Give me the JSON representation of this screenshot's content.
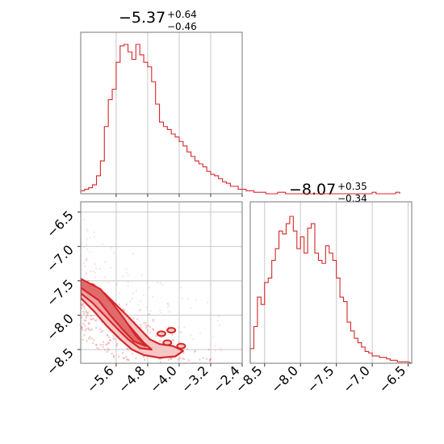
{
  "chart_data": [
    {
      "type": "histogram",
      "panel": "top-left",
      "title": {
        "median": "−5.37",
        "plus": "+0.64",
        "minus": "−0.46"
      },
      "xlim": [
        -6.5,
        -2.4
      ],
      "grid": true,
      "color": "#d62728",
      "bin_width": 0.1,
      "bin_start": -6.5,
      "counts": [
        2,
        3,
        4,
        6,
        12,
        22,
        45,
        63,
        70,
        88,
        99,
        100,
        95,
        90,
        100,
        93,
        88,
        85,
        75,
        60,
        48,
        45,
        43,
        40,
        38,
        35,
        32,
        28,
        25,
        22,
        20,
        18,
        15,
        13,
        12,
        10,
        8,
        7,
        5,
        5,
        3,
        3,
        2,
        2,
        1,
        1,
        1,
        0,
        0,
        0,
        1,
        1,
        0,
        0,
        0,
        0,
        0,
        0,
        0,
        0,
        0,
        0,
        0,
        0,
        0,
        0,
        0,
        0,
        0,
        0,
        0,
        0,
        0,
        0,
        1,
        0,
        0,
        0,
        0,
        0,
        1
      ]
    },
    {
      "type": "histogram",
      "panel": "bottom-right",
      "title": {
        "median": "−8.07",
        "plus": "+0.35",
        "minus": "−0.34"
      },
      "xlim": [
        -8.7,
        -6.45
      ],
      "xticks": [
        "−8.5",
        "−8.0",
        "−7.5",
        "−7.0",
        "−6.5"
      ],
      "xtick_values": [
        -8.5,
        -8.0,
        -7.5,
        -7.0,
        -6.5
      ],
      "grid": true,
      "color": "#d62728",
      "bin_width": 0.05,
      "bin_start": -8.7,
      "counts": [
        10,
        25,
        45,
        40,
        55,
        58,
        70,
        78,
        90,
        88,
        95,
        100,
        90,
        78,
        86,
        75,
        92,
        95,
        75,
        70,
        68,
        80,
        75,
        70,
        58,
        45,
        42,
        28,
        22,
        17,
        14,
        11,
        8,
        7,
        5,
        5,
        4,
        4,
        3,
        2,
        2,
        1,
        1,
        1
      ]
    },
    {
      "type": "scatter_contour",
      "panel": "bottom-left",
      "xlim": [
        -6.5,
        -2.4
      ],
      "ylim": [
        -8.7,
        -6.35
      ],
      "xticks": [
        "−5.6",
        "−4.8",
        "−4.0",
        "−3.2",
        "−2.4"
      ],
      "xtick_values": [
        -5.6,
        -4.8,
        -4.0,
        -3.2,
        -2.4
      ],
      "yticks": [
        "−6.5",
        "−7.0",
        "−7.5",
        "−8.0",
        "−8.5"
      ],
      "ytick_values": [
        -6.5,
        -7.0,
        -7.5,
        -8.0,
        -8.5
      ],
      "grid": true,
      "color": "#d62728",
      "contour_levels": [
        {
          "points": [
            [
              -6.5,
              -7.55
            ],
            [
              -6.2,
              -7.55
            ],
            [
              -5.9,
              -7.68
            ],
            [
              -5.6,
              -7.85
            ],
            [
              -5.3,
              -8.02
            ],
            [
              -5.0,
              -8.2
            ],
            [
              -4.75,
              -8.35
            ],
            [
              -4.5,
              -8.42
            ],
            [
              -4.15,
              -8.45
            ],
            [
              -3.9,
              -8.52
            ],
            [
              -4.1,
              -8.6
            ],
            [
              -4.5,
              -8.62
            ],
            [
              -4.9,
              -8.58
            ],
            [
              -5.2,
              -8.5
            ],
            [
              -5.5,
              -8.35
            ],
            [
              -5.85,
              -8.15
            ],
            [
              -6.15,
              -7.95
            ],
            [
              -6.5,
              -7.75
            ]
          ]
        },
        {
          "points": [
            [
              -6.5,
              -7.5
            ],
            [
              -6.1,
              -7.6
            ],
            [
              -5.8,
              -7.8
            ],
            [
              -5.5,
              -8.0
            ],
            [
              -5.2,
              -8.2
            ],
            [
              -4.9,
              -8.4
            ],
            [
              -4.7,
              -8.5
            ],
            [
              -5.0,
              -8.48
            ],
            [
              -5.3,
              -8.35
            ],
            [
              -5.6,
              -8.18
            ],
            [
              -5.9,
              -8.0
            ],
            [
              -6.2,
              -7.82
            ],
            [
              -6.5,
              -7.68
            ]
          ]
        },
        {
          "points": [
            [
              -6.5,
              -7.47
            ],
            [
              -6.0,
              -7.62
            ],
            [
              -5.7,
              -7.82
            ],
            [
              -5.4,
              -8.05
            ],
            [
              -5.1,
              -8.3
            ],
            [
              -4.85,
              -8.45
            ],
            [
              -5.15,
              -8.38
            ],
            [
              -5.45,
              -8.2
            ],
            [
              -5.75,
              -8.0
            ],
            [
              -6.05,
              -7.78
            ],
            [
              -6.5,
              -7.6
            ]
          ]
        }
      ]
    }
  ]
}
